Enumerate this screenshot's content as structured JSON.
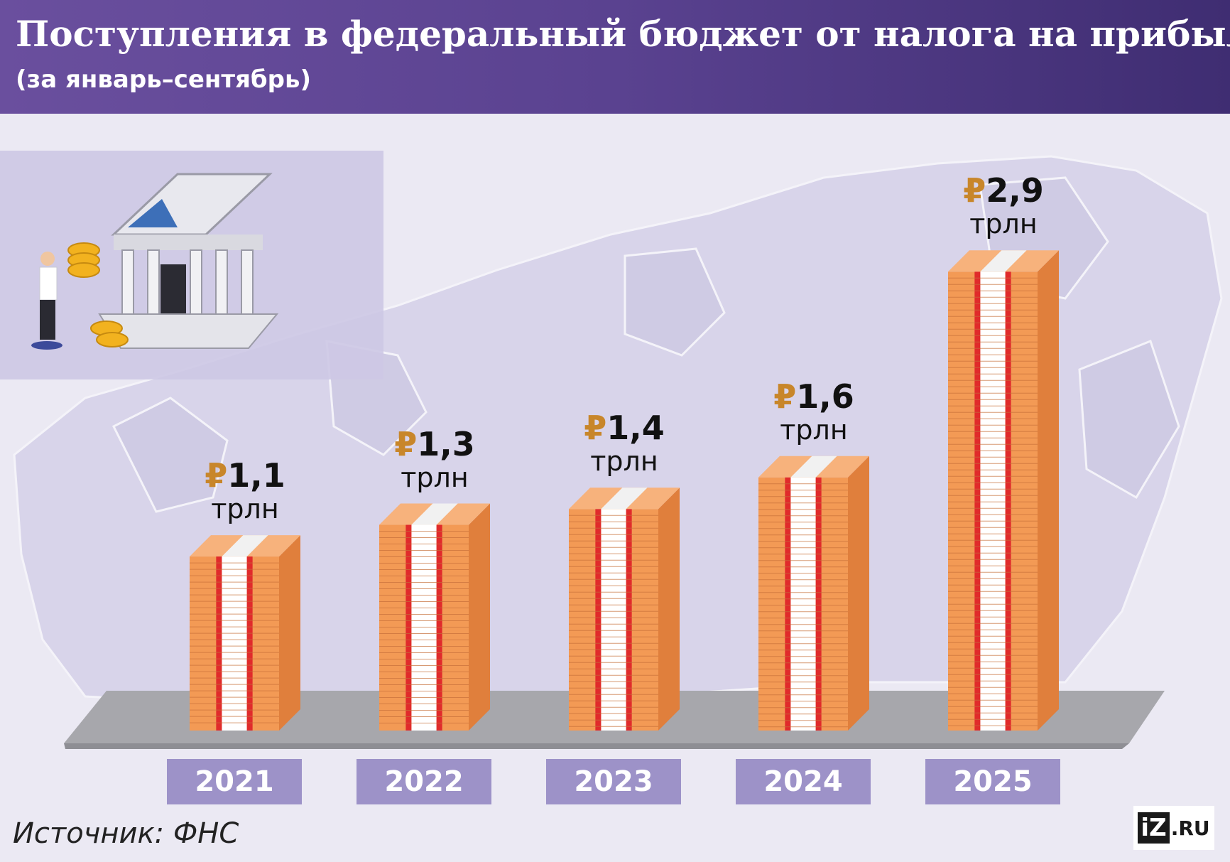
{
  "header": {
    "title": "Поступления в федеральный бюджет от налога на прибыль",
    "subtitle": "(за январь–сентябрь)"
  },
  "chart_data": {
    "type": "bar",
    "title": "Поступления в федеральный бюджет от налога на прибыль",
    "subtitle": "(за январь–сентябрь)",
    "categories": [
      "2021",
      "2022",
      "2023",
      "2024",
      "2025"
    ],
    "values": [
      1.1,
      1.3,
      1.4,
      1.6,
      2.9
    ],
    "labels": [
      "1,1",
      "1,3",
      "1,4",
      "1,6",
      "2,9"
    ],
    "currency_symbol": "₽",
    "unit": "трлн",
    "ylim": [
      0,
      3
    ]
  },
  "footer": {
    "source": "Источник: ФНС",
    "logo_iz": "iZ",
    "logo_ru": ".RU"
  },
  "colors": {
    "header_start": "#6a4f9e",
    "header_end": "#3f2d72",
    "background": "#ebe9f3",
    "year_box": "#9d92c8",
    "currency": "#c8862a",
    "stack_front": "#f39a55",
    "stack_side": "#e07f3c",
    "band_red": "#e02b2b",
    "platform": "#a7a7ac"
  }
}
